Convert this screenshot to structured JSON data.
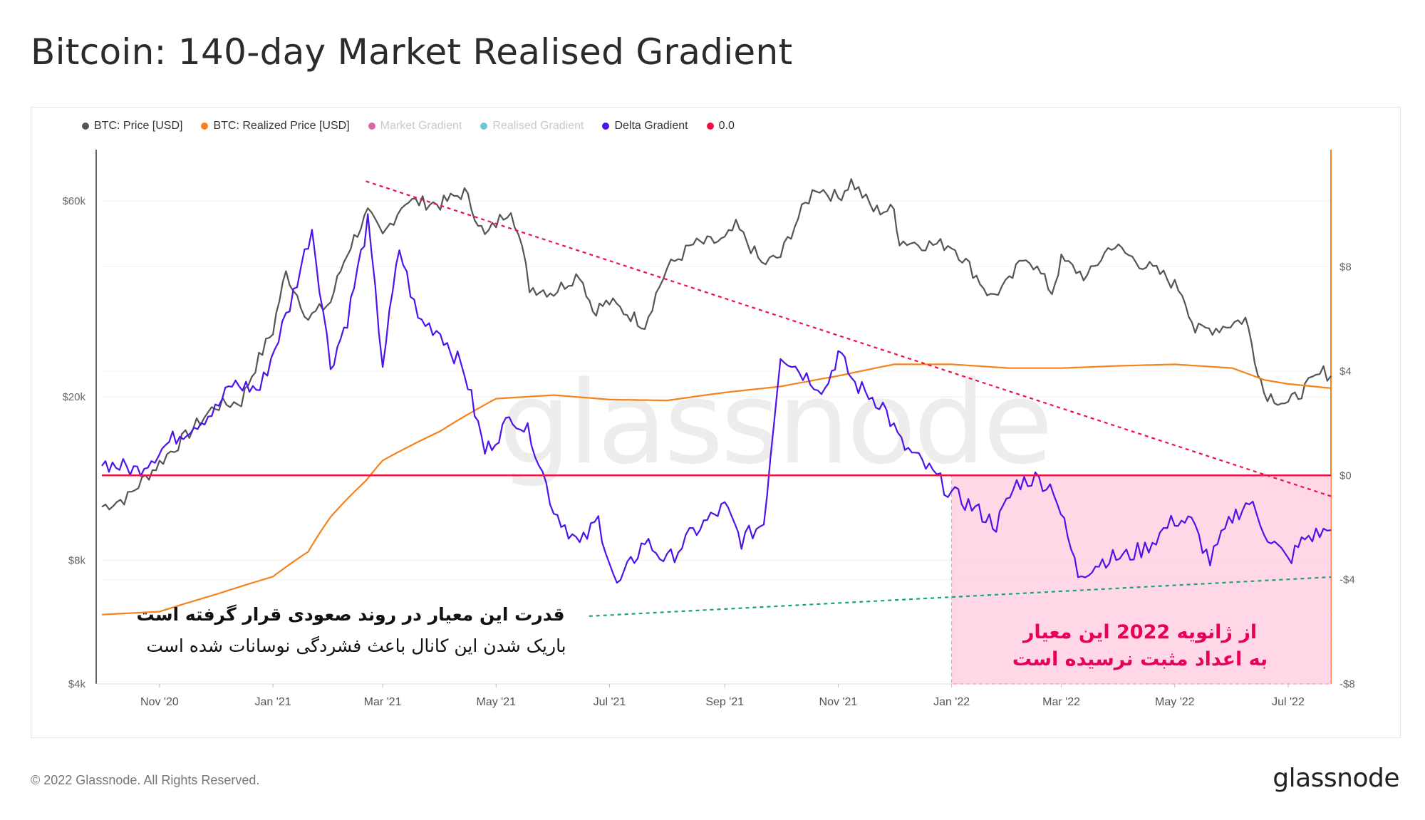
{
  "page": {
    "title": "Bitcoin: 140-day Market Realised Gradient"
  },
  "legend": [
    {
      "label": "BTC: Price [USD]",
      "color": "#555555",
      "active": true
    },
    {
      "label": "BTC: Realized Price [USD]",
      "color": "#f7821b",
      "active": true
    },
    {
      "label": "Market Gradient",
      "color": "#d667a8",
      "active": false
    },
    {
      "label": "Realised Gradient",
      "color": "#6cc9d1",
      "active": false
    },
    {
      "label": "Delta Gradient",
      "color": "#4c14e8",
      "active": true
    },
    {
      "label": "0.0",
      "color": "#ee1144",
      "active": true
    }
  ],
  "watermark": "glassnode",
  "annotations": {
    "left_bold": "قدرت این معیار در روند صعودی قرار گرفته است",
    "left_sub": "باریک شدن این کانال باعث فشردگی نوسانات شده است",
    "pink_line1": "از ژانویه 2022 این معیار",
    "pink_line2": "به اعداد مثبت نرسیده است"
  },
  "footer": {
    "copyright": "© 2022 Glassnode. All Rights Reserved.",
    "brand": "glassnode"
  },
  "chart_data": {
    "type": "line",
    "title": "Bitcoin: 140-day Market Realised Gradient",
    "x_tick_labels": [
      "Nov '20",
      "Jan '21",
      "Mar '21",
      "May '21",
      "Jul '21",
      "Sep '21",
      "Nov '21",
      "Jan '22",
      "Mar '22",
      "May '22",
      "Jul '22"
    ],
    "x_tick_dates": [
      "2020-11-01",
      "2021-01-01",
      "2021-03-01",
      "2021-05-01",
      "2021-07-01",
      "2021-09-01",
      "2021-11-01",
      "2022-01-01",
      "2022-03-01",
      "2022-05-01",
      "2022-07-01"
    ],
    "x_range": [
      "2020-10-01",
      "2022-07-24"
    ],
    "y_left": {
      "scale": "log",
      "tick_labels": [
        "$4k",
        "$8k",
        "$20k",
        "$60k"
      ],
      "tick_values": [
        4000,
        8000,
        20000,
        60000
      ],
      "range": [
        4000,
        80000
      ]
    },
    "y_right": {
      "scale": "linear",
      "tick_labels": [
        "-$8",
        "-$4",
        "$0",
        "$4",
        "$8"
      ],
      "tick_values": [
        -8,
        -4,
        0,
        4,
        8
      ],
      "range": [
        -8,
        12.5
      ]
    },
    "grid": true,
    "legend_position": "top-left",
    "series": [
      {
        "name": "BTC: Price [USD]",
        "axis": "left",
        "color": "#555555",
        "x": [
          "2020-10-01",
          "2020-10-15",
          "2020-11-01",
          "2020-11-15",
          "2020-12-01",
          "2020-12-15",
          "2021-01-01",
          "2021-01-08",
          "2021-01-20",
          "2021-02-01",
          "2021-02-10",
          "2021-02-21",
          "2021-03-01",
          "2021-03-13",
          "2021-04-01",
          "2021-04-14",
          "2021-04-25",
          "2021-05-09",
          "2021-05-19",
          "2021-06-01",
          "2021-06-15",
          "2021-06-22",
          "2021-07-01",
          "2021-07-20",
          "2021-08-01",
          "2021-08-15",
          "2021-09-01",
          "2021-09-07",
          "2021-09-21",
          "2021-10-01",
          "2021-10-20",
          "2021-11-01",
          "2021-11-08",
          "2021-11-20",
          "2021-12-01",
          "2021-12-04",
          "2021-12-20",
          "2022-01-01",
          "2022-01-22",
          "2022-02-01",
          "2022-02-10",
          "2022-02-24",
          "2022-03-01",
          "2022-03-15",
          "2022-03-28",
          "2022-04-10",
          "2022-04-25",
          "2022-05-05",
          "2022-05-12",
          "2022-05-25",
          "2022-06-08",
          "2022-06-13",
          "2022-06-18",
          "2022-07-01",
          "2022-07-10",
          "2022-07-20",
          "2022-07-24"
        ],
        "values": [
          10800,
          11400,
          13800,
          16000,
          19000,
          19500,
          29000,
          40000,
          31000,
          34000,
          45000,
          56000,
          49000,
          60000,
          59000,
          63000,
          49000,
          58000,
          37000,
          36000,
          40000,
          32500,
          34000,
          30000,
          41000,
          47000,
          48000,
          52000,
          42000,
          44000,
          65000,
          61000,
          67000,
          57000,
          57000,
          48000,
          47000,
          47000,
          35000,
          38000,
          44500,
          36000,
          43000,
          39000,
          47000,
          43000,
          39500,
          36000,
          29000,
          29500,
          31000,
          25000,
          20500,
          19200,
          21000,
          23000,
          22500
        ]
      },
      {
        "name": "BTC: Realized Price [USD]",
        "axis": "left",
        "color": "#f7821b",
        "x": [
          "2020-10-01",
          "2020-11-01",
          "2020-12-01",
          "2021-01-01",
          "2021-01-20",
          "2021-02-01",
          "2021-02-20",
          "2021-03-01",
          "2021-04-01",
          "2021-05-01",
          "2021-06-01",
          "2021-07-01",
          "2021-08-01",
          "2021-09-01",
          "2021-10-01",
          "2021-11-01",
          "2021-12-01",
          "2022-01-01",
          "2022-02-01",
          "2022-03-01",
          "2022-04-01",
          "2022-05-01",
          "2022-06-01",
          "2022-06-18",
          "2022-07-01",
          "2022-07-24"
        ],
        "values": [
          5900,
          6000,
          6600,
          7300,
          8400,
          10200,
          12500,
          14000,
          16500,
          19800,
          20200,
          19700,
          19600,
          20500,
          21200,
          22500,
          24000,
          24000,
          23500,
          23500,
          23800,
          24000,
          23500,
          22000,
          21500,
          21000
        ]
      },
      {
        "name": "Delta Gradient",
        "axis": "right",
        "color": "#4c14e8",
        "x": [
          "2020-10-01",
          "2020-10-20",
          "2020-11-10",
          "2020-12-01",
          "2020-12-10",
          "2020-12-25",
          "2021-01-10",
          "2021-01-22",
          "2021-02-01",
          "2021-02-10",
          "2021-02-21",
          "2021-03-01",
          "2021-03-10",
          "2021-03-20",
          "2021-04-01",
          "2021-04-14",
          "2021-04-25",
          "2021-05-10",
          "2021-05-20",
          "2021-06-01",
          "2021-06-15",
          "2021-06-25",
          "2021-07-05",
          "2021-07-20",
          "2021-08-01",
          "2021-08-15",
          "2021-09-01",
          "2021-09-10",
          "2021-09-22",
          "2021-10-01",
          "2021-10-15",
          "2021-10-25",
          "2021-11-01",
          "2021-11-10",
          "2021-11-25",
          "2021-12-05",
          "2021-12-20",
          "2022-01-01",
          "2022-01-10",
          "2022-01-25",
          "2022-02-05",
          "2022-02-15",
          "2022-02-25",
          "2022-03-10",
          "2022-03-25",
          "2022-04-05",
          "2022-04-15",
          "2022-05-01",
          "2022-05-10",
          "2022-05-20",
          "2022-06-01",
          "2022-06-10",
          "2022-06-20",
          "2022-07-01",
          "2022-07-10",
          "2022-07-24"
        ],
        "values": [
          0.5,
          0.2,
          1.5,
          2.5,
          3.5,
          3.3,
          6.5,
          9.5,
          4.2,
          6.0,
          9.7,
          4.3,
          8.7,
          6.0,
          5.5,
          4.0,
          0.9,
          2.3,
          1.5,
          -1.3,
          -2.7,
          -1.7,
          -4.3,
          -2.5,
          -3.3,
          -2.2,
          -1.2,
          -2.5,
          -1.8,
          4.7,
          3.8,
          3.3,
          4.7,
          3.5,
          2.7,
          1.2,
          0.2,
          -0.7,
          -1.1,
          -1.9,
          -0.3,
          -0.1,
          -0.5,
          -3.8,
          -3.2,
          -3.1,
          -2.8,
          -1.7,
          -1.8,
          -3.3,
          -1.6,
          -1.0,
          -2.3,
          -3.3,
          -2.4,
          -2.1
        ]
      },
      {
        "name": "0.0",
        "axis": "right",
        "color": "#ee1144",
        "x": [
          "2020-10-01",
          "2022-07-24"
        ],
        "values": [
          0,
          0
        ]
      }
    ],
    "annotations": [
      {
        "type": "trendline",
        "color": "#ee1144",
        "style": "dotted",
        "axis": "mixed",
        "x": [
          "2021-02-20",
          "2022-07-24"
        ],
        "values": [
          "$67k (price)",
          "-$0.8 (delta)"
        ]
      },
      {
        "type": "trendline",
        "color": "#1aa27a",
        "style": "dotted",
        "axis": "right",
        "x": [
          "2021-06-20",
          "2022-07-24"
        ],
        "values": [
          -5.4,
          -3.9
        ]
      },
      {
        "type": "shaded_region",
        "color": "#ffd0e2",
        "x": [
          "2022-01-01",
          "2022-07-24"
        ],
        "y": [
          -8,
          0
        ],
        "axis": "right"
      }
    ]
  }
}
